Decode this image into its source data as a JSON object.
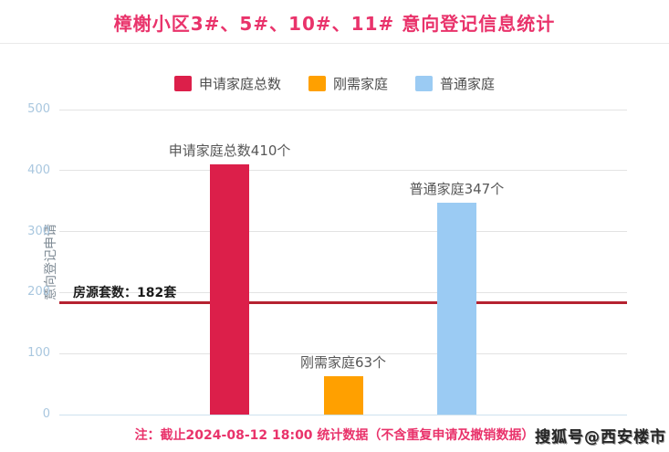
{
  "title": "樟榭小区3#、5#、10#、11# 意向登记信息统计",
  "footnote": "注：截止2024-08-12 18:00 统计数据（不含重复申请及撤销数据）",
  "watermark": "搜狐号@西安楼市",
  "colors": {
    "title_pink": "#e9336b",
    "bar_red": "#dc1f4a",
    "bar_orange": "#ffa000",
    "bar_blue": "#9bcbf3",
    "reference_line_red": "#b52230",
    "gridline": "#e3e3e3",
    "tick_text": "#a9c7df"
  },
  "chart_data": {
    "type": "bar",
    "title": "樟榭小区3#、5#、10#、11# 意向登记信息统计",
    "xlabel": "",
    "ylabel": "意向登记申请",
    "ylim": [
      0,
      500
    ],
    "yticks": [
      0,
      100,
      200,
      300,
      400,
      500
    ],
    "grid": true,
    "legend_position": "top",
    "categories": [
      "申请家庭总数",
      "刚需家庭",
      "普通家庭"
    ],
    "series": [
      {
        "name": "申请家庭总数",
        "value": 410,
        "color": "#dc1f4a",
        "data_label": "申请家庭总数410个"
      },
      {
        "name": "刚需家庭",
        "value": 63,
        "color": "#ffa000",
        "data_label": "刚需家庭63个"
      },
      {
        "name": "普通家庭",
        "value": 347,
        "color": "#9bcbf3",
        "data_label": "普通家庭347个"
      }
    ],
    "reference_line": {
      "value": 182,
      "label": "房源套数：182套",
      "color": "#b52230"
    }
  }
}
